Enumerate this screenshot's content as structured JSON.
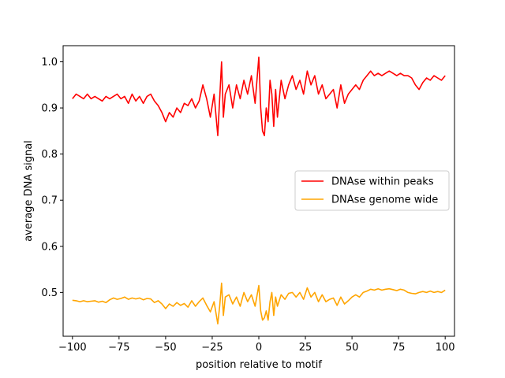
{
  "chart_data": {
    "type": "line",
    "xlabel": "position relative to motif",
    "ylabel": "average DNA signal",
    "xlim": [
      -105,
      105
    ],
    "ylim": [
      0.405,
      1.035
    ],
    "xticks": [
      -100,
      -75,
      -50,
      -25,
      0,
      25,
      50,
      75,
      100
    ],
    "xtick_labels": [
      "−100",
      "−75",
      "−50",
      "−25",
      "0",
      "25",
      "50",
      "75",
      "100"
    ],
    "yticks": [
      0.5,
      0.6,
      0.7,
      0.8,
      0.9,
      1.0
    ],
    "ytick_labels": [
      "0.5",
      "0.6",
      "0.7",
      "0.8",
      "0.9",
      "1.0"
    ],
    "grid": false,
    "legend_position": "center-right",
    "series": [
      {
        "name": "DNAse within peaks",
        "color": "#ff0000",
        "x": [
          -100,
          -98,
          -96,
          -94,
          -92,
          -90,
          -88,
          -86,
          -84,
          -82,
          -80,
          -78,
          -76,
          -74,
          -72,
          -70,
          -68,
          -66,
          -64,
          -62,
          -60,
          -58,
          -56,
          -54,
          -52,
          -50,
          -48,
          -46,
          -44,
          -42,
          -40,
          -38,
          -36,
          -34,
          -32,
          -30,
          -28,
          -26,
          -24,
          -22,
          -21,
          -20,
          -19,
          -18,
          -16,
          -14,
          -12,
          -10,
          -8,
          -6,
          -4,
          -2,
          0,
          1,
          2,
          3,
          4,
          5,
          6,
          7,
          8,
          9,
          10,
          12,
          14,
          16,
          18,
          20,
          22,
          24,
          26,
          28,
          30,
          32,
          34,
          36,
          38,
          40,
          42,
          44,
          46,
          48,
          50,
          52,
          54,
          56,
          58,
          60,
          62,
          64,
          66,
          68,
          70,
          72,
          74,
          76,
          78,
          80,
          82,
          84,
          86,
          88,
          90,
          92,
          94,
          96,
          98,
          100
        ],
        "values": [
          0.92,
          0.93,
          0.925,
          0.92,
          0.93,
          0.92,
          0.925,
          0.92,
          0.915,
          0.925,
          0.92,
          0.925,
          0.93,
          0.92,
          0.925,
          0.91,
          0.93,
          0.915,
          0.925,
          0.91,
          0.925,
          0.93,
          0.915,
          0.905,
          0.89,
          0.87,
          0.89,
          0.88,
          0.9,
          0.89,
          0.91,
          0.905,
          0.92,
          0.9,
          0.915,
          0.95,
          0.92,
          0.88,
          0.93,
          0.84,
          0.92,
          1.0,
          0.88,
          0.93,
          0.95,
          0.9,
          0.95,
          0.92,
          0.96,
          0.93,
          0.97,
          0.91,
          1.01,
          0.9,
          0.85,
          0.84,
          0.9,
          0.87,
          0.96,
          0.93,
          0.86,
          0.94,
          0.88,
          0.96,
          0.92,
          0.95,
          0.97,
          0.94,
          0.96,
          0.93,
          0.98,
          0.95,
          0.97,
          0.93,
          0.95,
          0.92,
          0.93,
          0.94,
          0.9,
          0.95,
          0.91,
          0.93,
          0.94,
          0.95,
          0.94,
          0.96,
          0.97,
          0.98,
          0.97,
          0.975,
          0.97,
          0.975,
          0.98,
          0.975,
          0.97,
          0.975,
          0.97,
          0.97,
          0.965,
          0.95,
          0.94,
          0.955,
          0.965,
          0.96,
          0.97,
          0.965,
          0.96,
          0.97
        ]
      },
      {
        "name": "DNAse genome wide",
        "color": "#ffa500",
        "x": [
          -100,
          -98,
          -96,
          -94,
          -92,
          -90,
          -88,
          -86,
          -84,
          -82,
          -80,
          -78,
          -76,
          -74,
          -72,
          -70,
          -68,
          -66,
          -64,
          -62,
          -60,
          -58,
          -56,
          -54,
          -52,
          -50,
          -48,
          -46,
          -44,
          -42,
          -40,
          -38,
          -36,
          -34,
          -32,
          -30,
          -28,
          -26,
          -24,
          -22,
          -21,
          -20,
          -19,
          -18,
          -16,
          -14,
          -12,
          -10,
          -8,
          -6,
          -4,
          -2,
          0,
          1,
          2,
          3,
          4,
          5,
          6,
          7,
          8,
          9,
          10,
          12,
          14,
          16,
          18,
          20,
          22,
          24,
          26,
          28,
          30,
          32,
          34,
          36,
          38,
          40,
          42,
          44,
          46,
          48,
          50,
          52,
          54,
          56,
          58,
          60,
          62,
          64,
          66,
          68,
          70,
          72,
          74,
          76,
          78,
          80,
          82,
          84,
          86,
          88,
          90,
          92,
          94,
          96,
          98,
          100
        ],
        "values": [
          0.483,
          0.482,
          0.48,
          0.482,
          0.48,
          0.481,
          0.482,
          0.479,
          0.481,
          0.478,
          0.484,
          0.488,
          0.485,
          0.487,
          0.49,
          0.485,
          0.488,
          0.486,
          0.488,
          0.484,
          0.487,
          0.486,
          0.478,
          0.482,
          0.475,
          0.465,
          0.475,
          0.47,
          0.478,
          0.472,
          0.476,
          0.468,
          0.482,
          0.47,
          0.48,
          0.488,
          0.472,
          0.458,
          0.48,
          0.432,
          0.47,
          0.52,
          0.45,
          0.49,
          0.495,
          0.475,
          0.49,
          0.47,
          0.5,
          0.48,
          0.495,
          0.47,
          0.515,
          0.46,
          0.44,
          0.445,
          0.46,
          0.44,
          0.48,
          0.5,
          0.45,
          0.49,
          0.47,
          0.495,
          0.485,
          0.498,
          0.5,
          0.49,
          0.5,
          0.485,
          0.51,
          0.49,
          0.5,
          0.48,
          0.495,
          0.48,
          0.485,
          0.488,
          0.472,
          0.49,
          0.475,
          0.482,
          0.49,
          0.495,
          0.49,
          0.5,
          0.503,
          0.507,
          0.505,
          0.508,
          0.505,
          0.507,
          0.508,
          0.506,
          0.504,
          0.507,
          0.505,
          0.5,
          0.498,
          0.497,
          0.5,
          0.502,
          0.5,
          0.503,
          0.5,
          0.502,
          0.5,
          0.505
        ]
      }
    ]
  }
}
